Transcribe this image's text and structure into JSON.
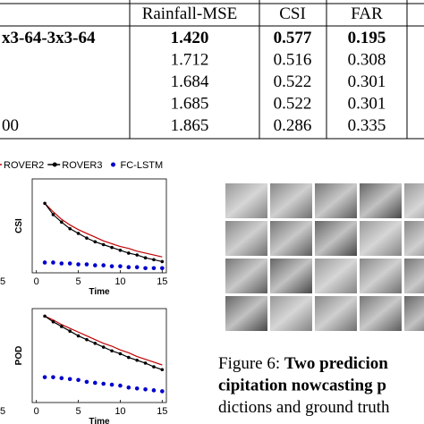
{
  "table": {
    "header": [
      "Rainfall-MSE",
      "CSI",
      "FAR"
    ],
    "rows": [
      [
        "x3-64-3x3-64",
        "1.420",
        "0.577",
        "0.195"
      ],
      [
        null,
        "1.712",
        "0.516",
        "0.308"
      ],
      [
        null,
        "1.684",
        "0.522",
        "0.301"
      ],
      [
        null,
        "1.685",
        "0.522",
        "0.301"
      ],
      [
        "00",
        "1.865",
        "0.286",
        "0.335"
      ]
    ],
    "bold_rows": [
      0
    ]
  },
  "chart_data": [
    {
      "type": "line",
      "ylabel": "CSI",
      "xlabel": "Time",
      "y_tick_fragment": "5",
      "x": [
        1,
        2,
        3,
        4,
        5,
        6,
        7,
        8,
        9,
        10,
        11,
        12,
        13,
        14,
        15
      ],
      "xlim": [
        -0.5,
        15.5
      ],
      "xticks": [
        0,
        5,
        10,
        15
      ],
      "ylim": [
        0,
        1
      ],
      "series": [
        {
          "name": "ROVER2",
          "color": "#c00000",
          "style": "line",
          "values": [
            0.74,
            0.65,
            0.57,
            0.51,
            0.46,
            0.42,
            0.38,
            0.34,
            0.31,
            0.28,
            0.26,
            0.23,
            0.21,
            0.19,
            0.17
          ]
        },
        {
          "name": "ROVER3",
          "color": "#000000",
          "style": "line-marker",
          "values": [
            0.74,
            0.62,
            0.54,
            0.47,
            0.42,
            0.37,
            0.33,
            0.3,
            0.27,
            0.24,
            0.21,
            0.19,
            0.16,
            0.14,
            0.12
          ]
        },
        {
          "name": "FC-LSTM",
          "color": "#0000cc",
          "style": "marker",
          "values": [
            0.11,
            0.11,
            0.1,
            0.1,
            0.09,
            0.09,
            0.08,
            0.08,
            0.07,
            0.07,
            0.06,
            0.06,
            0.05,
            0.05,
            0.05
          ]
        }
      ]
    },
    {
      "type": "line",
      "ylabel": "POD",
      "xlabel": "Time",
      "y_tick_fragment": "5",
      "x": [
        1,
        2,
        3,
        4,
        5,
        6,
        7,
        8,
        9,
        10,
        11,
        12,
        13,
        14,
        15
      ],
      "xlim": [
        -0.5,
        15.5
      ],
      "xticks": [
        0,
        5,
        10,
        15
      ],
      "ylim": [
        0,
        1
      ],
      "series": [
        {
          "name": "ROVER2",
          "color": "#c00000",
          "style": "line",
          "values": [
            0.92,
            0.88,
            0.83,
            0.79,
            0.75,
            0.71,
            0.67,
            0.63,
            0.6,
            0.56,
            0.53,
            0.49,
            0.46,
            0.43,
            0.4
          ]
        },
        {
          "name": "ROVER3",
          "color": "#000000",
          "style": "line-marker",
          "values": [
            0.92,
            0.86,
            0.81,
            0.76,
            0.71,
            0.67,
            0.63,
            0.59,
            0.55,
            0.52,
            0.48,
            0.45,
            0.42,
            0.38,
            0.35
          ]
        },
        {
          "name": "FC-LSTM",
          "color": "#0000cc",
          "style": "marker",
          "values": [
            0.27,
            0.27,
            0.26,
            0.25,
            0.24,
            0.22,
            0.21,
            0.2,
            0.19,
            0.18,
            0.16,
            0.15,
            0.14,
            0.13,
            0.12
          ]
        }
      ]
    }
  ],
  "caption": {
    "lines": [
      [
        {
          "text": "Figure 6: ",
          "bold": false
        },
        {
          "text": "Two predicion",
          "bold": true
        }
      ],
      [
        {
          "text": "cipitation nowcasting p",
          "bold": true
        }
      ],
      [
        {
          "text": "dictions and ground truth",
          "bold": false
        }
      ]
    ]
  }
}
